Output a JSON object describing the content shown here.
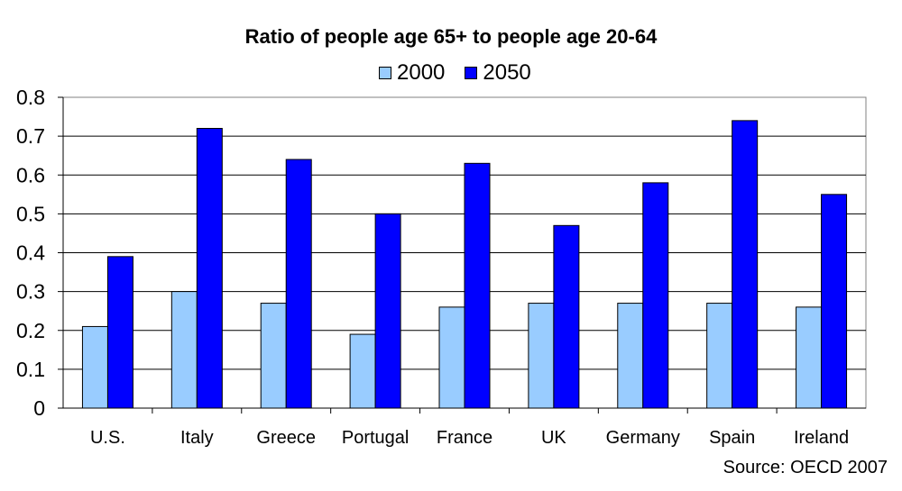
{
  "chart_data": {
    "type": "bar",
    "title": "Ratio of people age 65+ to people age 20-64",
    "categories": [
      "U.S.",
      "Italy",
      "Greece",
      "Portugal",
      "France",
      "UK",
      "Germany",
      "Spain",
      "Ireland"
    ],
    "series": [
      {
        "name": "2000",
        "color": "#99ccff",
        "values": [
          0.21,
          0.3,
          0.27,
          0.19,
          0.26,
          0.27,
          0.27,
          0.27,
          0.26
        ]
      },
      {
        "name": "2050",
        "color": "#0000ff",
        "values": [
          0.39,
          0.72,
          0.64,
          0.5,
          0.63,
          0.47,
          0.58,
          0.74,
          0.55
        ]
      }
    ],
    "ylim": [
      0,
      0.8
    ],
    "yticks": [
      "0",
      "0.1",
      "0.2",
      "0.3",
      "0.4",
      "0.5",
      "0.6",
      "0.7",
      "0.8"
    ],
    "grid": true,
    "legend_position": "top-center",
    "xlabel": "",
    "ylabel": ""
  },
  "source": "Source: OECD 2007"
}
